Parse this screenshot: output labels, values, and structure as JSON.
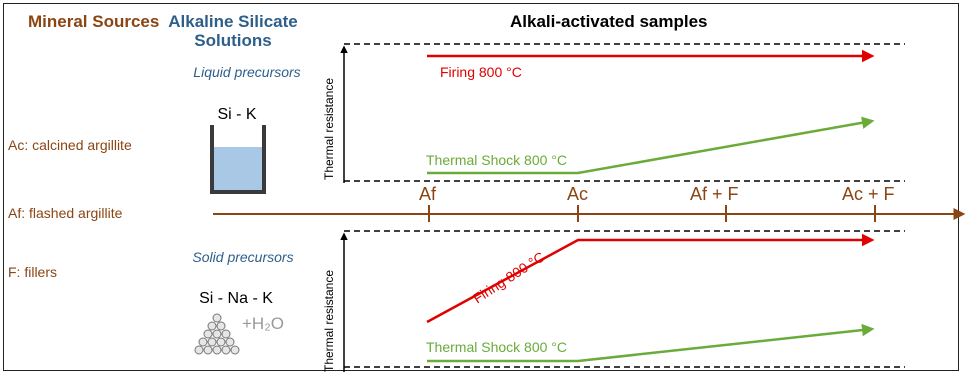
{
  "columns": {
    "mineral_sources_title": "Mineral Sources",
    "solutions_title": "Alkaline Silicate Solutions",
    "samples_title": "Alkali-activated samples"
  },
  "mineral_sources": [
    "Ac: calcined argillite",
    "Af: flashed argillite",
    "F: fillers"
  ],
  "liquid": {
    "label": "Liquid precursors",
    "formula": "Si - K"
  },
  "solid": {
    "label": "Solid precursors",
    "formula": "Si - Na - K",
    "plus_water": "+H₂O"
  },
  "axis": {
    "ticks": [
      "Af",
      "Ac",
      "Af + F",
      "Ac + F"
    ]
  },
  "top_panel": {
    "ylabel": "Thermal resistance",
    "firing_label": "Firing 800 °C",
    "shock_label": "Thermal Shock 800 °C"
  },
  "bottom_panel": {
    "ylabel": "Thermal resistance",
    "firing_label": "Firing 800 °C",
    "shock_label": "Thermal Shock 800 °C"
  },
  "colors": {
    "firing": "#e00000",
    "shock": "#6aab3a",
    "axis": "#8b4513",
    "liquid_fill": "#a9c8e6"
  }
}
